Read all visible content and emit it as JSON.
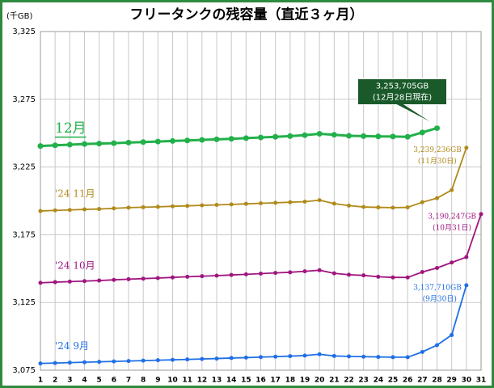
{
  "chart_data": {
    "type": "line",
    "title": "フリータンクの残容量（直近３ヶ月）",
    "y_unit": "(千GB)",
    "x": [
      1,
      2,
      3,
      4,
      5,
      6,
      7,
      8,
      9,
      10,
      11,
      12,
      13,
      14,
      15,
      16,
      17,
      18,
      19,
      20,
      21,
      22,
      23,
      24,
      25,
      26,
      27,
      28,
      29,
      30,
      31
    ],
    "xlim": [
      1,
      31
    ],
    "xticks": [
      1,
      2,
      3,
      4,
      5,
      6,
      7,
      8,
      9,
      10,
      11,
      12,
      13,
      14,
      15,
      16,
      17,
      18,
      19,
      20,
      21,
      22,
      23,
      24,
      25,
      26,
      27,
      28,
      29,
      30,
      31
    ],
    "ylim": [
      3075,
      3325
    ],
    "yticks": [
      {
        "value": 3075,
        "label": "3,075"
      },
      {
        "value": 3125,
        "label": "3,125"
      },
      {
        "value": 3175,
        "label": "3,175"
      },
      {
        "value": 3225,
        "label": "3,225"
      },
      {
        "value": 3275,
        "label": "3,275"
      },
      {
        "value": 3325,
        "label": "3,325"
      }
    ],
    "grid": true,
    "series": [
      {
        "name": "12月",
        "color": "#22b04a",
        "values": [
          3240.5,
          3241,
          3241.5,
          3242,
          3242.3,
          3242.6,
          3243,
          3243.4,
          3243.8,
          3244.2,
          3244.6,
          3245,
          3245.4,
          3245.8,
          3246.3,
          3246.8,
          3247.3,
          3247.8,
          3248.5,
          3249.5,
          3248.8,
          3248,
          3247.8,
          3247.6,
          3247.5,
          3247.3,
          3250.5,
          3253.705,
          null,
          null,
          null
        ]
      },
      {
        "name": "'24 11月",
        "color": "#b08a1a",
        "values": [
          3192.5,
          3193,
          3193.3,
          3193.7,
          3194,
          3194.5,
          3195,
          3195.3,
          3195.6,
          3196,
          3196.3,
          3196.7,
          3197,
          3197.4,
          3197.8,
          3198.2,
          3198.6,
          3199,
          3199.4,
          3200.5,
          3198,
          3196.5,
          3195.5,
          3195.2,
          3195,
          3195.2,
          3199,
          3202,
          3208,
          3239.236,
          null
        ]
      },
      {
        "name": "'24 10月",
        "color": "#a0157f",
        "values": [
          3139.5,
          3140,
          3140.4,
          3140.8,
          3141.2,
          3141.7,
          3142.2,
          3142.6,
          3143,
          3143.5,
          3144,
          3144.4,
          3144.8,
          3145.3,
          3145.8,
          3146.3,
          3146.8,
          3147.3,
          3148,
          3148.8,
          3146.5,
          3145.5,
          3145,
          3144,
          3143.5,
          3143.5,
          3147.5,
          3150.5,
          3154.5,
          3158.5,
          3190.247
        ]
      },
      {
        "name": "'24 9月",
        "color": "#1f6fe6",
        "values": [
          3080,
          3080.3,
          3080.6,
          3080.9,
          3081.2,
          3081.5,
          3081.8,
          3082.1,
          3082.4,
          3082.7,
          3083,
          3083.3,
          3083.6,
          3084,
          3084.3,
          3084.7,
          3085,
          3085.4,
          3085.8,
          3086.8,
          3085.5,
          3085.2,
          3085,
          3084.8,
          3084.6,
          3084.6,
          3088.5,
          3093.5,
          3101,
          3137.71,
          null
        ]
      }
    ],
    "annotations": [
      {
        "lines": [
          "3,253,705GB",
          "(12月28日現在)"
        ]
      },
      {
        "lines": [
          "3,239,236GB",
          "(11月30日)"
        ]
      },
      {
        "lines": [
          "3,190,247GB",
          "(10月31日)"
        ]
      },
      {
        "lines": [
          "3,137,710GB",
          "(9月30日)"
        ]
      }
    ]
  }
}
